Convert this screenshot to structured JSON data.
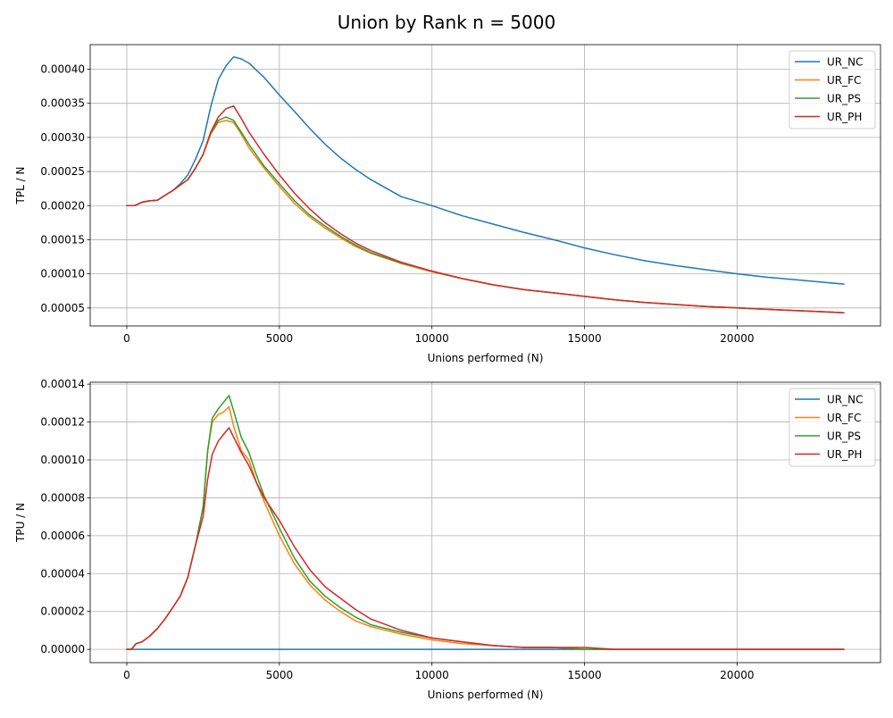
{
  "figure": {
    "title": "Union by Rank n = 5000"
  },
  "chart_data": [
    {
      "type": "line",
      "xlabel": "Unions performed (N)",
      "ylabel": "TPL / N",
      "xlim": [
        -1200,
        24700
      ],
      "ylim": [
        2.36e-05,
        0.000436
      ],
      "xticks": [
        0,
        5000,
        10000,
        15000,
        20000
      ],
      "yticks": [
        5e-05,
        0.0001,
        0.00015,
        0.0002,
        0.00025,
        0.0003,
        0.00035,
        0.0004
      ],
      "ytick_labels": [
        "0.00005",
        "0.00010",
        "0.00015",
        "0.00020",
        "0.00025",
        "0.00030",
        "0.00035",
        "0.00040"
      ],
      "grid": true,
      "legend_position": "top-right",
      "x": [
        0,
        250,
        500,
        750,
        1000,
        1250,
        1500,
        1750,
        2000,
        2250,
        2500,
        2750,
        3000,
        3250,
        3500,
        3750,
        4000,
        4500,
        5000,
        5500,
        6000,
        6500,
        7000,
        7500,
        8000,
        9000,
        10000,
        11000,
        12000,
        13000,
        14000,
        15000,
        16000,
        17000,
        18000,
        19000,
        20000,
        21000,
        22000,
        23000,
        23500
      ],
      "series": [
        {
          "name": "UR_NC",
          "color": "#1f77b4",
          "values": [
            0.0002,
            0.0002,
            0.000205,
            0.000207,
            0.000208,
            0.000215,
            0.000222,
            0.000232,
            0.000245,
            0.000268,
            0.000295,
            0.000345,
            0.000385,
            0.000405,
            0.000418,
            0.000415,
            0.000409,
            0.000388,
            0.000362,
            0.000338,
            0.000313,
            0.00029,
            0.00027,
            0.000253,
            0.000238,
            0.000213,
            0.0002,
            0.000185,
            0.000173,
            0.000161,
            0.00015,
            0.000138,
            0.000128,
            0.000119,
            0.000112,
            0.000106,
            0.0001,
            9.5e-05,
            9.1e-05,
            8.7e-05,
            8.5e-05
          ]
        },
        {
          "name": "UR_FC",
          "color": "#ff7f0e",
          "values": [
            0.0002,
            0.0002,
            0.000205,
            0.000207,
            0.000208,
            0.000215,
            0.000222,
            0.00023,
            0.000238,
            0.000255,
            0.000275,
            0.000305,
            0.000322,
            0.000325,
            0.000322,
            0.000305,
            0.000285,
            0.000255,
            0.000228,
            0.000203,
            0.000183,
            0.000167,
            0.000153,
            0.00014,
            0.00013,
            0.000115,
            0.000103,
            9.3e-05,
            8.4e-05,
            7.7e-05,
            7.2e-05,
            6.7e-05,
            6.2e-05,
            5.8e-05,
            5.5e-05,
            5.2e-05,
            5e-05,
            4.8e-05,
            4.6e-05,
            4.4e-05,
            4.3e-05
          ]
        },
        {
          "name": "UR_PS",
          "color": "#2ca02c",
          "values": [
            0.0002,
            0.0002,
            0.000205,
            0.000207,
            0.000208,
            0.000215,
            0.000222,
            0.00023,
            0.000238,
            0.000255,
            0.000275,
            0.000306,
            0.000325,
            0.00033,
            0.000325,
            0.000308,
            0.00029,
            0.000258,
            0.000232,
            0.000207,
            0.000186,
            0.00017,
            0.000155,
            0.000142,
            0.000131,
            0.000116,
            0.000104,
            9.3e-05,
            8.4e-05,
            7.7e-05,
            7.2e-05,
            6.7e-05,
            6.2e-05,
            5.8e-05,
            5.5e-05,
            5.2e-05,
            5e-05,
            4.8e-05,
            4.6e-05,
            4.4e-05,
            4.3e-05
          ]
        },
        {
          "name": "UR_PH",
          "color": "#d62728",
          "values": [
            0.0002,
            0.0002,
            0.000205,
            0.000207,
            0.000208,
            0.000215,
            0.000222,
            0.00023,
            0.000238,
            0.000255,
            0.000275,
            0.000308,
            0.00033,
            0.000342,
            0.000346,
            0.000328,
            0.000308,
            0.000275,
            0.000245,
            0.000218,
            0.000195,
            0.000175,
            0.000159,
            0.000145,
            0.000134,
            0.000117,
            0.000104,
            9.3e-05,
            8.4e-05,
            7.7e-05,
            7.2e-05,
            6.7e-05,
            6.2e-05,
            5.8e-05,
            5.5e-05,
            5.2e-05,
            5e-05,
            4.8e-05,
            4.6e-05,
            4.4e-05,
            4.3e-05
          ]
        }
      ]
    },
    {
      "type": "line",
      "xlabel": "Unions performed (N)",
      "ylabel": "TPU / N",
      "xlim": [
        -1200,
        24700
      ],
      "ylim": [
        -7e-06,
        0.000141
      ],
      "xticks": [
        0,
        5000,
        10000,
        15000,
        20000
      ],
      "yticks": [
        0,
        2e-05,
        4e-05,
        6e-05,
        8e-05,
        0.0001,
        0.00012,
        0.00014
      ],
      "ytick_labels": [
        "0.00000",
        "0.00002",
        "0.00004",
        "0.00006",
        "0.00008",
        "0.00010",
        "0.00012",
        "0.00014"
      ],
      "grid": true,
      "legend_position": "top-right",
      "x": [
        0,
        150,
        300,
        500,
        750,
        1000,
        1250,
        1500,
        1750,
        2000,
        2250,
        2500,
        2650,
        2800,
        3000,
        3150,
        3350,
        3500,
        3750,
        4000,
        4250,
        4500,
        5000,
        5500,
        6000,
        6500,
        7000,
        7500,
        8000,
        9000,
        10000,
        11000,
        12000,
        13000,
        14000,
        15000,
        16000,
        18000,
        20000,
        22000,
        23500
      ],
      "series": [
        {
          "name": "UR_NC",
          "color": "#1f77b4",
          "values": [
            0,
            0,
            0,
            0,
            0,
            0,
            0,
            0,
            0,
            0,
            0,
            0,
            0,
            0,
            0,
            0,
            0,
            0,
            0,
            0,
            0,
            0,
            0,
            0,
            0,
            0,
            0,
            0,
            0,
            0,
            0,
            0,
            0,
            0,
            0,
            0,
            0,
            0,
            0,
            0,
            0
          ]
        },
        {
          "name": "UR_FC",
          "color": "#ff7f0e",
          "values": [
            0,
            0,
            3e-06,
            4e-06,
            7e-06,
            1.1e-05,
            1.6e-05,
            2.2e-05,
            2.8e-05,
            3.8e-05,
            5.5e-05,
            7.5e-05,
            0.000105,
            0.00012,
            0.000124,
            0.000125,
            0.000128,
            0.000118,
            0.000105,
            0.0001,
            8.8e-05,
            7.8e-05,
            6e-05,
            4.5e-05,
            3.4e-05,
            2.6e-05,
            2e-05,
            1.5e-05,
            1.2e-05,
            8e-06,
            5e-06,
            3e-06,
            2e-06,
            1e-06,
            1e-06,
            0,
            0,
            0,
            0,
            0,
            0
          ]
        },
        {
          "name": "UR_PS",
          "color": "#2ca02c",
          "values": [
            0,
            0,
            3e-06,
            4e-06,
            7e-06,
            1.1e-05,
            1.6e-05,
            2.2e-05,
            2.8e-05,
            3.8e-05,
            5.5e-05,
            7.5e-05,
            0.000105,
            0.000122,
            0.000127,
            0.00013,
            0.000134,
            0.000126,
            0.000112,
            0.000104,
            9.2e-05,
            8.1e-05,
            6.4e-05,
            4.8e-05,
            3.6e-05,
            2.8e-05,
            2.2e-05,
            1.7e-05,
            1.3e-05,
            9e-06,
            6e-06,
            4e-06,
            2e-06,
            1e-06,
            1e-06,
            0,
            0,
            0,
            0,
            0,
            0
          ]
        },
        {
          "name": "UR_PH",
          "color": "#d62728",
          "values": [
            0,
            0,
            3e-06,
            4e-06,
            7e-06,
            1.1e-05,
            1.6e-05,
            2.2e-05,
            2.8e-05,
            3.8e-05,
            5.5e-05,
            7e-05,
            9e-05,
            0.000103,
            0.00011,
            0.000113,
            0.000117,
            0.000112,
            0.000104,
            9.7e-05,
            8.8e-05,
            8e-05,
            6.8e-05,
            5.4e-05,
            4.2e-05,
            3.3e-05,
            2.7e-05,
            2.1e-05,
            1.6e-05,
            1e-05,
            6e-06,
            4e-06,
            2e-06,
            1e-06,
            1e-06,
            1e-06,
            0,
            0,
            0,
            0,
            0
          ]
        }
      ]
    }
  ]
}
